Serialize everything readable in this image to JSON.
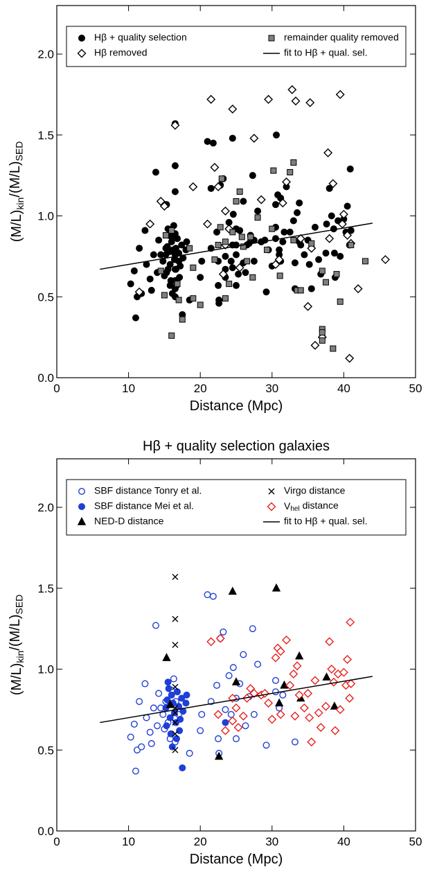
{
  "chart_data": [
    {
      "type": "scatter",
      "xlabel": "Distance (Mpc)",
      "ylabel": [
        "(M/L)",
        "kin",
        "/(M/L)",
        "SED"
      ],
      "xlim": [
        0,
        50
      ],
      "xticks": [
        0,
        10,
        20,
        30,
        40,
        50
      ],
      "ylim": [
        0,
        2.3
      ],
      "yticks": [
        {
          "value": 0,
          "label": "0.0"
        },
        0.5,
        {
          "value": 1,
          "label": "1.0"
        },
        1.5,
        {
          "value": 2,
          "label": "2.0"
        }
      ],
      "legend": "top",
      "series": [
        {
          "name": "Hβ + quality selection",
          "marker": "circle",
          "color": "#000000",
          "fill": "#000000",
          "x": [
            10.3,
            10.8,
            11.0,
            11.2,
            11.5,
            11.8,
            12.3,
            12.5,
            13,
            13.2,
            13.5,
            13.8,
            14,
            14.2,
            14.5,
            14.8,
            15,
            15.2,
            15.5,
            15.8,
            16.0,
            16.3,
            16.5,
            16.6,
            17,
            18.5,
            20,
            20.2,
            21,
            21.5,
            21.8,
            22.3,
            22.5,
            22.6,
            22.8,
            23.2,
            23.5,
            24,
            24.3,
            24.6,
            25,
            25,
            25.5,
            26,
            26.3,
            26.8,
            27.3,
            27.5,
            28,
            28.5,
            29.2,
            30.5,
            30.5,
            31.5,
            33.2,
            31,
            15.2,
            15.3,
            15.5,
            15.6,
            15.8,
            15.9,
            16,
            16.1,
            16.2,
            16.4,
            16.6,
            16.8,
            17,
            17.1,
            17.2,
            17.4,
            17.5,
            17.6,
            18,
            18.1,
            16.7,
            15.4,
            23.5,
            15.3,
            15.8,
            22.6,
            24.5,
            25,
            30.6,
            31,
            31.7,
            33.8,
            34,
            37.6,
            38.7,
            16.5,
            16.5,
            16.5,
            16.5,
            16.5,
            16.5,
            16.5,
            16.5,
            16.5,
            21.5,
            22.8,
            22.5,
            23.5,
            24.5,
            24.5,
            25,
            25.3,
            26,
            26.5,
            27,
            27.5,
            28.5,
            29,
            29.5,
            30,
            30.5,
            30.8,
            31.2,
            31.2,
            32,
            32.5,
            33,
            33.2,
            33.5,
            33.8,
            34.5,
            35,
            35.2,
            35.5,
            36.5,
            36.8,
            37.5,
            38,
            38.3,
            38.6,
            38.8,
            39.2,
            39.5,
            40,
            40.3,
            40.5,
            40.8,
            40.9,
            41,
            36
          ],
          "values": [
            0.58,
            0.66,
            0.37,
            0.5,
            0.8,
            0.52,
            0.91,
            0.7,
            0.61,
            0.54,
            0.76,
            1.27,
            0.65,
            0.85,
            0.76,
            0.72,
            0.63,
            0.8,
            0.67,
            0.57,
            0.87,
            0.94,
            0.55,
            0.8,
            0.72,
            0.48,
            0.62,
            0.72,
            1.46,
            0.8,
            1.45,
            0.9,
            0.57,
            0.48,
            1.19,
            1.23,
            0.75,
            0.96,
            0.72,
            1.01,
            0.57,
            0.82,
            0.91,
            1.09,
            0.65,
            0.83,
            1.25,
            0.72,
            1.03,
            0.84,
            0.53,
            0.93,
            0.86,
            0.84,
            0.55,
            0.76,
            0.76,
            0.65,
            0.92,
            0.88,
            0.7,
            0.6,
            0.84,
            0.52,
            0.79,
            0.73,
            0.67,
            0.86,
            0.77,
            0.62,
            0.69,
            0.82,
            0.39,
            0.74,
            0.79,
            0.84,
            0.57,
            0.81,
            0.67,
            1.07,
            0.78,
            0.46,
            1.48,
            0.92,
            1.5,
            0.79,
            0.9,
            1.08,
            0.82,
            0.95,
            0.77,
            1.57,
            1.31,
            1.15,
            0.89,
            0.76,
            0.73,
            0.67,
            0.6,
            0.5,
            1.17,
            1.19,
            0.72,
            0.62,
            0.82,
            0.68,
            0.76,
            0.64,
            0.71,
            0.82,
            0.88,
            0.85,
            0.84,
            0.85,
            0.79,
            0.69,
            1.07,
            1.13,
            1.11,
            0.72,
            1.18,
            0.9,
            0.97,
            0.71,
            1.02,
            0.84,
            0.76,
            0.85,
            0.7,
            0.55,
            0.73,
            0.64,
            0.77,
            1.17,
            1.0,
            0.92,
            0.62,
            0.97,
            0.75,
            0.98,
            0.9,
            1.06,
            0.82,
            1.29,
            0.91,
            0.93
          ]
        },
        {
          "name": "Hβ removed",
          "marker": "diamond",
          "color": "#000000",
          "fill": "#ffffff",
          "x": [
            11.5,
            13,
            14.5,
            15,
            16.5,
            19,
            21,
            21.5,
            22,
            22.5,
            23.2,
            23.5,
            23.5,
            24,
            24.5,
            25.5,
            27.5,
            28.5,
            29.5,
            30.5,
            31,
            31.5,
            32,
            32.8,
            33.3,
            34,
            35,
            35.3,
            35.5,
            36,
            37,
            37.8,
            38,
            38.5,
            39.5,
            40,
            40.5,
            41,
            40.8,
            42,
            45.8,
            39.8
          ],
          "values": [
            0.53,
            0.95,
            1.09,
            1.06,
            1.56,
            1.18,
            0.95,
            1.72,
            1.3,
            1.18,
            0.64,
            1.03,
            0.82,
            0.92,
            1.66,
            0.68,
            1.48,
            1.1,
            1.72,
            0.7,
            0.73,
            1.08,
            1.21,
            1.78,
            1.71,
            0.86,
            0.44,
            1.7,
            0.8,
            0.2,
            0.25,
            1.39,
            0.86,
            1.2,
            1.75,
            1.01,
            0.88,
            0.83,
            0.12,
            0.55,
            0.73,
            0.95
          ]
        },
        {
          "name": "remainder quality removed",
          "marker": "square",
          "color": "#000000",
          "fill": "#808080",
          "x": [
            14.5,
            15,
            15.2,
            16.8,
            16,
            17,
            17.5,
            16,
            18.5,
            19,
            19,
            20,
            22,
            22.5,
            22.8,
            23,
            23.5,
            23.5,
            24,
            24.5,
            25,
            25.5,
            25.8,
            26,
            26.5,
            27,
            27.3,
            28,
            29.3,
            30,
            30.2,
            31.1,
            32.5,
            33,
            33,
            33.5,
            34,
            35.5,
            37,
            37.5,
            37,
            37,
            37,
            38.5,
            39.5,
            41,
            43,
            39
          ],
          "values": [
            0.66,
            0.51,
            0.88,
            0.58,
            0.91,
            0.48,
            0.36,
            0.26,
            0.8,
            0.68,
            0.49,
            0.45,
            0.73,
            0.82,
            0.93,
            1.23,
            0.84,
            0.49,
            0.58,
            0.9,
            1.09,
            1.15,
            0.87,
            0.81,
            0.72,
            0.87,
            0.62,
            0.99,
            0.79,
            0.92,
            1.28,
            0.63,
            1.27,
            1.33,
            0.85,
            0.54,
            0.54,
            0.83,
            0.66,
            0.59,
            0.3,
            0.28,
            0.23,
            0.18,
            0.47,
            0.82,
            0.72,
            0.64
          ]
        },
        {
          "name": "fit to Hβ + qual. sel.",
          "marker": "line",
          "color": "#000000",
          "x": [
            6,
            44
          ],
          "values": [
            0.67,
            0.955
          ]
        }
      ]
    },
    {
      "type": "scatter",
      "title": "Hβ + quality selection galaxies",
      "xlabel": "Distance (Mpc)",
      "ylabel": [
        "(M/L)",
        "kin",
        "/(M/L)",
        "SED"
      ],
      "xlim": [
        0,
        50
      ],
      "xticks": [
        0,
        10,
        20,
        30,
        40,
        50
      ],
      "ylim": [
        0,
        2.3
      ],
      "yticks": [
        {
          "value": 0,
          "label": "0.0"
        },
        0.5,
        {
          "value": 1,
          "label": "1.0"
        },
        1.5,
        {
          "value": 2,
          "label": "2.0"
        }
      ],
      "legend": "top",
      "series": [
        {
          "name": "SBF distance Tonry et al.",
          "marker": "circle",
          "color": "#1f3fd6",
          "fill": "#ffffff",
          "x": [
            10.3,
            10.8,
            11.0,
            11.2,
            11.5,
            11.8,
            12.3,
            12.5,
            13,
            13.2,
            13.5,
            13.8,
            14,
            14.2,
            14.5,
            14.8,
            15,
            15.2,
            15.5,
            15.8,
            16.0,
            16.3,
            16.5,
            16.6,
            17,
            18.5,
            20,
            20.2,
            21,
            21.5,
            21.8,
            22.3,
            22.5,
            22.6,
            22.8,
            23.2,
            23.5,
            24,
            24.3,
            24.6,
            25,
            25,
            25.5,
            26,
            26.3,
            26.8,
            27.3,
            27.5,
            28,
            28.5,
            29.2,
            30.5,
            30.5,
            31.5,
            33.2,
            31
          ],
          "values": [
            0.58,
            0.66,
            0.37,
            0.5,
            0.8,
            0.52,
            0.91,
            0.7,
            0.61,
            0.54,
            0.76,
            1.27,
            0.65,
            0.85,
            0.76,
            0.72,
            0.63,
            0.8,
            0.67,
            0.57,
            0.87,
            0.94,
            0.55,
            0.8,
            0.72,
            0.48,
            0.62,
            0.72,
            1.46,
            0.8,
            1.45,
            0.9,
            0.57,
            0.48,
            1.19,
            1.23,
            0.75,
            0.96,
            0.72,
            1.01,
            0.57,
            0.82,
            0.91,
            1.09,
            0.65,
            0.83,
            1.25,
            0.72,
            1.03,
            0.84,
            0.53,
            0.93,
            0.86,
            0.84,
            0.55,
            0.76
          ]
        },
        {
          "name": "SBF distance Mei et al.",
          "marker": "circle",
          "color": "#1f3fd6",
          "fill": "#1f3fd6",
          "x": [
            15.2,
            15.3,
            15.5,
            15.6,
            15.8,
            15.9,
            16,
            16.1,
            16.2,
            16.4,
            16.6,
            16.8,
            17,
            17.1,
            17.2,
            17.4,
            17.5,
            17.6,
            18,
            18.1,
            16.7,
            15.4,
            23.5
          ],
          "values": [
            0.76,
            0.65,
            0.92,
            0.88,
            0.7,
            0.6,
            0.84,
            0.52,
            0.79,
            0.73,
            0.67,
            0.86,
            0.77,
            0.62,
            0.69,
            0.82,
            0.39,
            0.74,
            0.79,
            0.84,
            0.57,
            0.81,
            0.67
          ]
        },
        {
          "name": "NED-D distance",
          "marker": "triangle",
          "color": "#000000",
          "fill": "#000000",
          "x": [
            15.3,
            15.8,
            22.6,
            24.5,
            25,
            30.6,
            31,
            31.7,
            33.8,
            34,
            37.6,
            38.7
          ],
          "values": [
            1.07,
            0.78,
            0.46,
            1.48,
            0.92,
            1.5,
            0.79,
            0.9,
            1.08,
            0.82,
            0.95,
            0.77
          ]
        },
        {
          "name": "Virgo distance",
          "marker": "x",
          "color": "#000000",
          "fill": "none",
          "x": [
            16.5,
            16.5,
            16.5,
            16.5,
            16.5,
            16.5,
            16.5,
            16.5,
            16.5
          ],
          "values": [
            1.57,
            1.31,
            1.15,
            0.89,
            0.76,
            0.73,
            0.67,
            0.6,
            0.5
          ]
        },
        {
          "name": [
            "V",
            "hel",
            " distance"
          ],
          "marker": "diamond",
          "color": "#e8201c",
          "fill": "#ffffff",
          "x": [
            21.5,
            22.8,
            22.5,
            23.5,
            24.5,
            24.5,
            25,
            25.3,
            26,
            26.5,
            27,
            27.5,
            28.5,
            29,
            29.5,
            30,
            30.5,
            30.8,
            31.2,
            31.2,
            32,
            32.5,
            33,
            33.2,
            33.5,
            33.8,
            34.5,
            35,
            35.2,
            35.5,
            36.5,
            36.8,
            37.5,
            38,
            38.3,
            38.6,
            38.8,
            39.2,
            39.5,
            40,
            40.3,
            40.5,
            40.8,
            40.9,
            41,
            36
          ],
          "values": [
            1.17,
            1.19,
            0.72,
            0.62,
            0.82,
            0.68,
            0.76,
            0.64,
            0.71,
            0.82,
            0.88,
            0.85,
            0.84,
            0.85,
            0.79,
            0.69,
            1.07,
            1.13,
            1.11,
            0.72,
            1.18,
            0.9,
            0.97,
            0.71,
            1.02,
            0.84,
            0.76,
            0.85,
            0.7,
            0.55,
            0.73,
            0.64,
            0.77,
            1.17,
            1.0,
            0.92,
            0.62,
            0.97,
            0.75,
            0.98,
            0.9,
            1.06,
            0.82,
            1.29,
            0.91,
            0.93
          ]
        },
        {
          "name": "fit to Hβ + qual. sel.",
          "marker": "line",
          "color": "#000000",
          "x": [
            6,
            44
          ],
          "values": [
            0.67,
            0.955
          ]
        }
      ]
    }
  ]
}
